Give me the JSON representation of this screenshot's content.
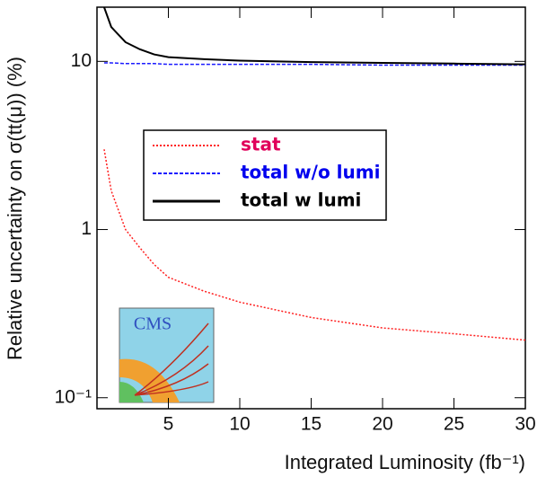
{
  "chart_data": {
    "type": "line",
    "x_label": "Integrated Luminosity (fb⁻¹)",
    "y_label": "Relative uncertainty on σ(tt(μ)) (%)",
    "x": [
      0.5,
      1,
      2,
      3,
      4,
      5,
      7.5,
      10,
      15,
      20,
      25,
      30
    ],
    "series": [
      {
        "name": "stat",
        "color": "#ff2020",
        "label_color": "#e0005a",
        "style": "dotted",
        "values": [
          3.0,
          1.7,
          1.0,
          0.78,
          0.62,
          0.52,
          0.43,
          0.37,
          0.3,
          0.26,
          0.24,
          0.22
        ]
      },
      {
        "name": "total w/o lumi",
        "color": "#1a1aff",
        "label_color": "#0000ee",
        "style": "dashed",
        "values": [
          9.8,
          9.8,
          9.7,
          9.7,
          9.7,
          9.6,
          9.6,
          9.6,
          9.6,
          9.5,
          9.5,
          9.5
        ]
      },
      {
        "name": "total w lumi",
        "color": "#000000",
        "label_color": "#000000",
        "style": "solid",
        "values": [
          21,
          16,
          13,
          11.8,
          11,
          10.6,
          10.3,
          10.1,
          9.9,
          9.8,
          9.7,
          9.6
        ]
      }
    ],
    "xlim": [
      0,
      30
    ],
    "xticks": [
      5,
      10,
      15,
      20,
      25,
      30
    ],
    "ylim": [
      0.086,
      21
    ],
    "log_y": true,
    "yticks": [
      {
        "value": 0.1,
        "label": "10⁻¹"
      },
      1,
      10
    ],
    "logo_text": "CMS"
  }
}
